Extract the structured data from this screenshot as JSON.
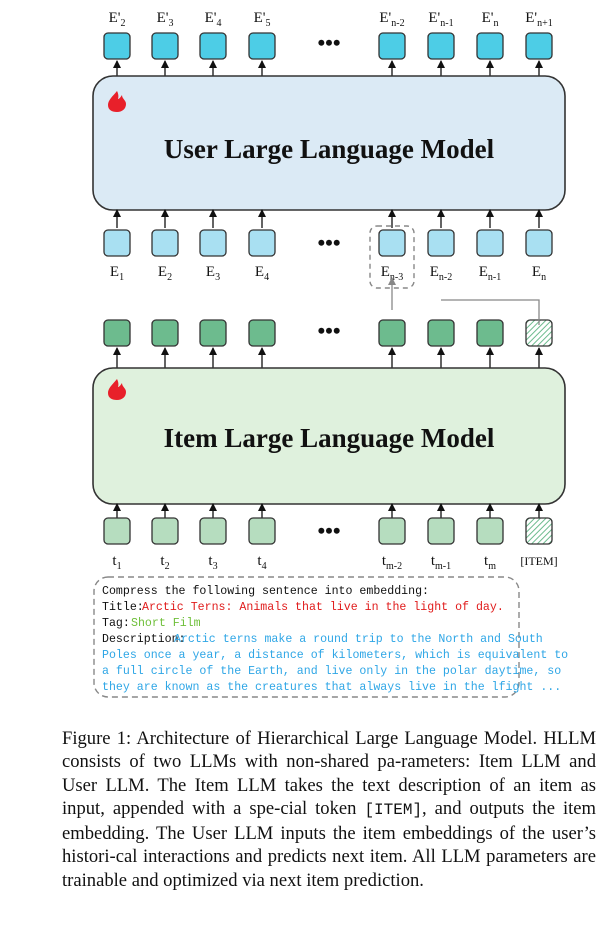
{
  "user_llm": {
    "title": "User Large Language Model",
    "output_tokens": [
      {
        "base": "E'",
        "sub": "2"
      },
      {
        "base": "E'",
        "sub": "3"
      },
      {
        "base": "E'",
        "sub": "4"
      },
      {
        "base": "E'",
        "sub": "5"
      },
      {
        "base": "E'",
        "sub": "n-2"
      },
      {
        "base": "E'",
        "sub": "n-1"
      },
      {
        "base": "E'",
        "sub": "n"
      },
      {
        "base": "E'",
        "sub": "n+1"
      }
    ],
    "input_tokens": [
      {
        "base": "E",
        "sub": "1"
      },
      {
        "base": "E",
        "sub": "2"
      },
      {
        "base": "E",
        "sub": "3"
      },
      {
        "base": "E",
        "sub": "4"
      },
      {
        "base": "E",
        "sub": "n-3"
      },
      {
        "base": "E",
        "sub": "n-2"
      },
      {
        "base": "E",
        "sub": "n-1"
      },
      {
        "base": "E",
        "sub": "n"
      }
    ]
  },
  "item_llm": {
    "title": "Item Large Language Model",
    "input_tokens": [
      {
        "base": "t",
        "sub": "1"
      },
      {
        "base": "t",
        "sub": "2"
      },
      {
        "base": "t",
        "sub": "3"
      },
      {
        "base": "t",
        "sub": "4"
      },
      {
        "base": "t",
        "sub": "m-2"
      },
      {
        "base": "t",
        "sub": "m-1"
      },
      {
        "base": "t",
        "sub": "m"
      },
      {
        "base": "[ITEM]",
        "sub": ""
      }
    ]
  },
  "ellipsis": "•••",
  "prompt": {
    "instruction": "Compress the following sentence into embedding:",
    "title_label": "Title:",
    "title_value": "Arctic Terns: Animals that live in the light of day.",
    "tag_label": "Tag:",
    "tag_value": "Short Film",
    "description_label": "Description:",
    "description_lines": [
      "Arctic terns make a round trip to the North and South",
      "Poles once a year, a distance of kilometers, which is equivalent to",
      "a full circle of the Earth, and live only in the polar daytime, so",
      "they are known as the creatures that always live in the lfight ..."
    ]
  },
  "caption": {
    "part1": "Figure 1: Architecture of Hierarchical Large Language Model. HLLM consists of two LLMs with non-shared pa-rameters: Item LLM and User LLM. The Item LLM takes the text description of an item as input, appended with a spe-cial token ",
    "code": "[ITEM]",
    "part2": ", and outputs the item embedding. The User LLM inputs the item embeddings of the user’s histori-cal interactions and predicts next item. All LLM parameters are trainable and optimized via next item prediction."
  },
  "colors": {
    "user_box_fill": "#dbeaf5",
    "item_box_fill": "#dff1dd",
    "output_token": "#4dcde6",
    "user_input_token": "#a9e0f2",
    "item_output_token": "#6dbb8e",
    "item_input_token": "#b6ddbf",
    "flame": "#e8202a"
  }
}
